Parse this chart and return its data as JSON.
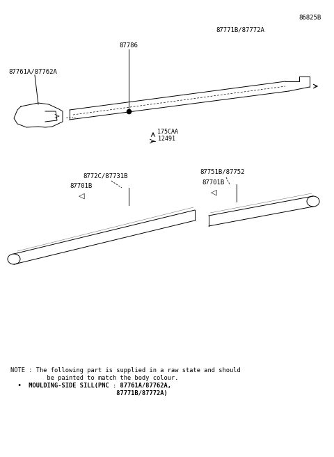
{
  "bg_color": "#ffffff",
  "fig_width": 4.8,
  "fig_height": 6.57,
  "dpi": 100,
  "diagram_number": "86825B",
  "upper_part_label": "87771B/87772A",
  "upper_clip_label": "87786",
  "upper_left_label": "87761A/87762A",
  "upper_dim1": "175CAA",
  "upper_dim2": "12491",
  "lower_group_label_left": "8772C/87731B",
  "lower_left_part_label": "87701B",
  "lower_right_group_label": "87751B/87752",
  "lower_right_part_label": "87701B",
  "note_line1": "NOTE : The following part is supplied in a raw state and should",
  "note_line2": "          be painted to match the body colour.",
  "note_bullet": "  •  MOULDING-SIDE SILL(PNC : 87761A/87762A,",
  "note_bullet2": "                             87771B/87772A)"
}
